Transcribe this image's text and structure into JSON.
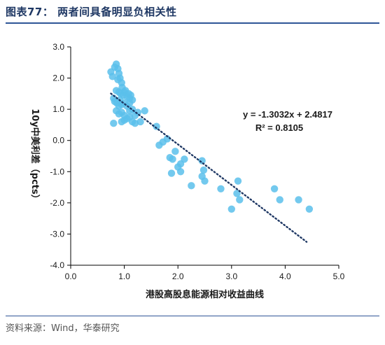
{
  "figure": {
    "title": "图表77： 两者间具备明显负相关性",
    "source": "资料来源：Wind，华泰研究"
  },
  "colors": {
    "points": "#5bc0eb",
    "trendline": "#1f3864",
    "axis": "#000000",
    "title": "#1f3864",
    "rule": "#2f5597"
  },
  "chart_data": {
    "type": "scatter",
    "xlabel": "港股高股息能源相对收益曲线",
    "ylabel": "10y中美利差（pcts）",
    "xlim": [
      0.0,
      5.0
    ],
    "ylim": [
      -4.0,
      3.0
    ],
    "xticks": [
      "0.0",
      "1.0",
      "2.0",
      "3.0",
      "4.0",
      "5.0"
    ],
    "yticks": [
      "3.0",
      "2.0",
      "1.0",
      "0.0",
      "-1.0",
      "-2.0",
      "-3.0",
      "-4.0"
    ],
    "grid": false,
    "trendline": {
      "slope": -1.3032,
      "intercept": 2.4817,
      "x_range": [
        0.75,
        4.4
      ],
      "equation": "y = -1.3032x + 2.4817",
      "r_squared": "R² = 0.8105"
    },
    "points": [
      [
        0.75,
        2.2
      ],
      [
        0.78,
        2.05
      ],
      [
        0.82,
        2.35
      ],
      [
        0.85,
        2.45
      ],
      [
        0.88,
        2.3
      ],
      [
        0.9,
        2.15
      ],
      [
        0.88,
        1.95
      ],
      [
        0.92,
        2.0
      ],
      [
        0.95,
        1.85
      ],
      [
        0.96,
        1.7
      ],
      [
        0.85,
        1.6
      ],
      [
        0.9,
        1.55
      ],
      [
        0.93,
        1.5
      ],
      [
        0.98,
        1.45
      ],
      [
        1.0,
        1.55
      ],
      [
        1.02,
        1.6
      ],
      [
        1.05,
        1.4
      ],
      [
        1.08,
        1.5
      ],
      [
        1.1,
        1.35
      ],
      [
        1.12,
        1.45
      ],
      [
        1.15,
        1.3
      ],
      [
        0.8,
        1.35
      ],
      [
        0.82,
        1.25
      ],
      [
        0.86,
        1.2
      ],
      [
        0.9,
        1.1
      ],
      [
        0.92,
        1.3
      ],
      [
        0.95,
        1.15
      ],
      [
        1.0,
        1.2
      ],
      [
        1.05,
        1.1
      ],
      [
        1.1,
        1.2
      ],
      [
        1.15,
        1.0
      ],
      [
        0.85,
        0.95
      ],
      [
        0.9,
        0.85
      ],
      [
        0.95,
        0.9
      ],
      [
        1.0,
        0.8
      ],
      [
        1.05,
        0.7
      ],
      [
        1.1,
        0.75
      ],
      [
        1.15,
        0.6
      ],
      [
        1.2,
        0.55
      ],
      [
        0.8,
        0.55
      ],
      [
        0.95,
        0.6
      ],
      [
        1.0,
        0.65
      ],
      [
        1.25,
        0.9
      ],
      [
        1.3,
        0.6
      ],
      [
        1.38,
        0.95
      ],
      [
        1.1,
        0.95
      ],
      [
        1.2,
        0.8
      ],
      [
        1.6,
        0.45
      ],
      [
        1.65,
        -0.15
      ],
      [
        1.72,
        -0.05
      ],
      [
        1.8,
        0.05
      ],
      [
        1.85,
        -0.55
      ],
      [
        1.9,
        -0.6
      ],
      [
        1.95,
        -0.35
      ],
      [
        2.0,
        -0.85
      ],
      [
        2.05,
        -0.75
      ],
      [
        2.05,
        -1.0
      ],
      [
        1.88,
        -1.05
      ],
      [
        2.12,
        -0.6
      ],
      [
        2.25,
        -1.45
      ],
      [
        2.45,
        -0.65
      ],
      [
        2.45,
        -1.15
      ],
      [
        2.48,
        -0.95
      ],
      [
        2.5,
        -1.3
      ],
      [
        2.8,
        -1.55
      ],
      [
        3.0,
        -2.2
      ],
      [
        3.1,
        -1.7
      ],
      [
        3.12,
        -1.3
      ],
      [
        3.15,
        -1.9
      ],
      [
        3.8,
        -1.55
      ],
      [
        3.9,
        -1.9
      ],
      [
        4.25,
        -1.9
      ],
      [
        4.45,
        -2.2
      ]
    ]
  }
}
